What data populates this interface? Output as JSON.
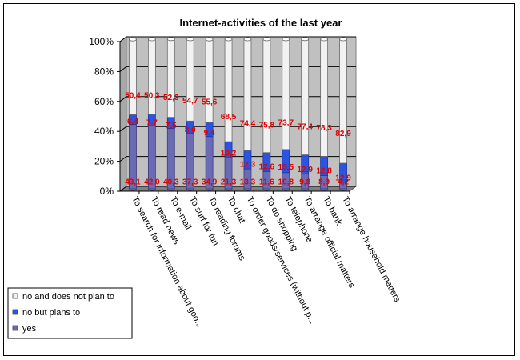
{
  "chart_data": {
    "type": "bar",
    "stacked": true,
    "percent": true,
    "title": "Internet-activities of the last year",
    "xlabel": "",
    "ylabel": "",
    "ylim": [
      0,
      100
    ],
    "yticks": [
      "0%",
      "20%",
      "40%",
      "60%",
      "80%",
      "100%"
    ],
    "grid": true,
    "legend_position": "bottom-left",
    "categories": [
      "To search for information about goo...",
      "To read news",
      "To e-mail",
      "To surf for fun",
      "To reading forums",
      "To chat",
      "To order goods/services (without p...",
      "To do shopping",
      "To telephone",
      "To arrange official matters",
      "To bank",
      "To arrange household matters"
    ],
    "series": [
      {
        "name": "yes",
        "color": "#6b6bb5",
        "values": [
          43.1,
          42.0,
          40.3,
          37.3,
          34.9,
          21.3,
          13.3,
          11.6,
          10.8,
          9.8,
          8.9,
          4.2
        ],
        "labels": [
          "43,1",
          "42,0",
          "40,3",
          "37,3",
          "34,9",
          "21,3",
          "13,3",
          "11,6",
          "10,8",
          "9,8",
          "8,9",
          "4,2"
        ]
      },
      {
        "name": "no but plans to",
        "color": "#2b55e0",
        "values": [
          6.4,
          7.7,
          7.5,
          8.0,
          9.4,
          10.2,
          12.3,
          12.6,
          15.5,
          12.9,
          12.8,
          12.9
        ],
        "labels": [
          "6,4",
          "7,7",
          "7,5",
          "8,0",
          "9,4",
          "10,2",
          "12,3",
          "12,6",
          "15,5",
          "12,9",
          "12,8",
          "12,9"
        ]
      },
      {
        "name": "no and does not plan to",
        "color": "#f2f2f2",
        "values": [
          50.4,
          50.3,
          52.3,
          54.7,
          55.6,
          68.5,
          74.4,
          75.8,
          73.7,
          77.4,
          78.3,
          82.9
        ],
        "labels": [
          "50,4",
          "50,3",
          "52,3",
          "54,7",
          "55,6",
          "68,5",
          "74,4",
          "75,8",
          "73,7",
          "77,4",
          "78,3",
          "82,9"
        ]
      }
    ],
    "legend": [
      {
        "label": "no and does not plan to",
        "color": "#f2f2f2"
      },
      {
        "label": "no but plans to",
        "color": "#2b55e0"
      },
      {
        "label": "yes",
        "color": "#6b6bb5"
      }
    ]
  }
}
